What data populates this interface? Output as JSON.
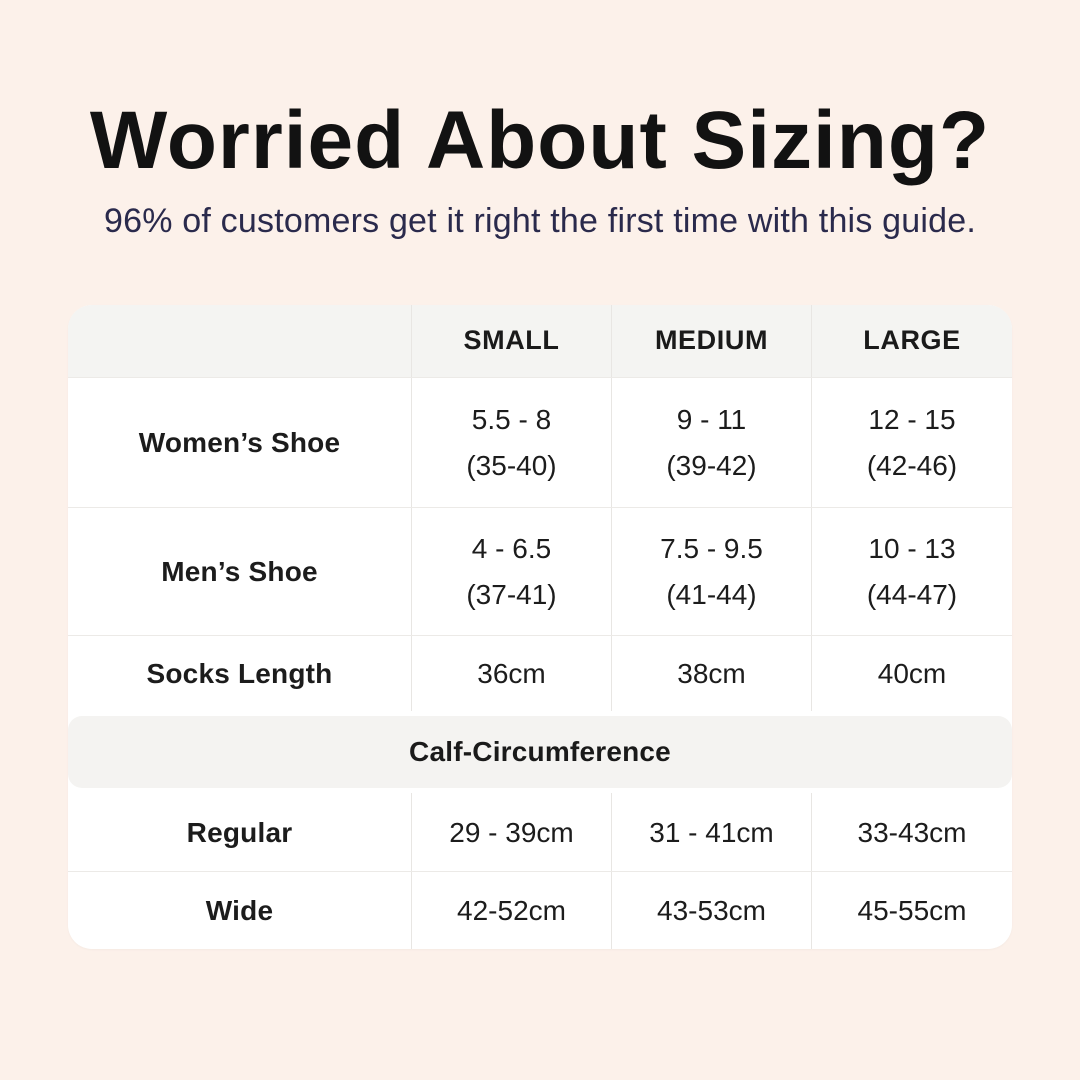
{
  "page": {
    "background_color": "#FCF1EA",
    "accent_text_color": "#2A2A4C",
    "table_header_color": "#F4F4F2"
  },
  "header": {
    "title": "Worried About Sizing?",
    "subtitle": "96% of customers get it right the first time with this guide."
  },
  "table": {
    "column_headers": [
      "",
      "SMALL",
      "MEDIUM",
      "LARGE"
    ],
    "rows": [
      {
        "label": "Women’s Shoe",
        "cells": [
          {
            "line1": "5.5 - 8",
            "line2": "(35-40)"
          },
          {
            "line1": "9 - 11",
            "line2": "(39-42)"
          },
          {
            "line1": "12 - 15",
            "line2": "(42-46)"
          }
        ]
      },
      {
        "label": "Men’s Shoe",
        "cells": [
          {
            "line1": "4 - 6.5",
            "line2": "(37-41)"
          },
          {
            "line1": "7.5 - 9.5",
            "line2": "(41-44)"
          },
          {
            "line1": "10 - 13",
            "line2": "(44-47)"
          }
        ]
      },
      {
        "label": "Socks Length",
        "cells": [
          {
            "line1": "36cm"
          },
          {
            "line1": "38cm"
          },
          {
            "line1": "40cm"
          }
        ]
      }
    ],
    "section": {
      "header": "Calf-Circumference",
      "rows": [
        {
          "label": "Regular",
          "cells": [
            {
              "line1": "29 - 39cm"
            },
            {
              "line1": "31 - 41cm"
            },
            {
              "line1": "33-43cm"
            }
          ]
        },
        {
          "label": "Wide",
          "cells": [
            {
              "line1": "42-52cm"
            },
            {
              "line1": "43-53cm"
            },
            {
              "line1": "45-55cm"
            }
          ]
        }
      ]
    }
  },
  "chart_data": {
    "type": "table",
    "title": "Worried About Sizing?",
    "subtitle": "96% of customers get it right the first time with this guide.",
    "columns": [
      "",
      "SMALL",
      "MEDIUM",
      "LARGE"
    ],
    "rows": [
      [
        "Women’s Shoe",
        "5.5 - 8 (35-40)",
        "9 - 11 (39-42)",
        "12 - 15 (42-46)"
      ],
      [
        "Men’s Shoe",
        "4 - 6.5 (37-41)",
        "7.5 - 9.5 (41-44)",
        "10 - 13 (44-47)"
      ],
      [
        "Socks Length",
        "36cm",
        "38cm",
        "40cm"
      ],
      [
        "Calf-Circumference",
        "",
        "",
        ""
      ],
      [
        "Regular",
        "29 - 39cm",
        "31 - 41cm",
        "33-43cm"
      ],
      [
        "Wide",
        "42-52cm",
        "43-53cm",
        "45-55cm"
      ]
    ]
  }
}
